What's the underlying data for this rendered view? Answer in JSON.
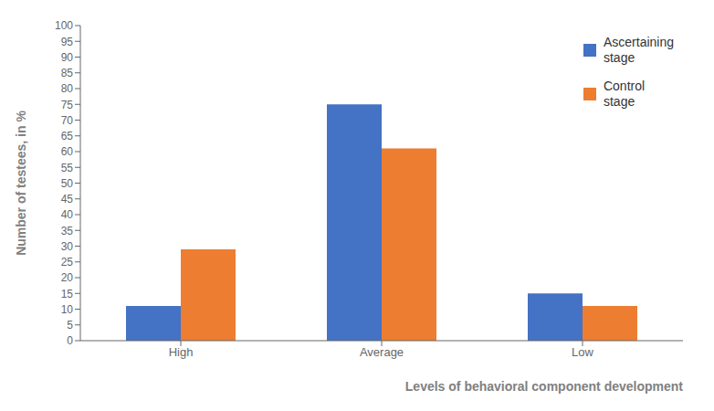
{
  "chart_data": {
    "type": "bar",
    "categories": [
      "High",
      "Average",
      "Low"
    ],
    "series": [
      {
        "name": "Ascertaining\nstage",
        "color": "#4472C4",
        "values": [
          11,
          75,
          15
        ]
      },
      {
        "name": "Control\nstage",
        "color": "#ED7D31",
        "values": [
          29,
          61,
          11
        ]
      }
    ],
    "xlabel": "Levels of behavioral component development",
    "ylabel": "Number of testees, in  %",
    "ylim": [
      0,
      100
    ],
    "yticks": [
      0,
      5,
      10,
      15,
      20,
      25,
      30,
      35,
      40,
      45,
      50,
      55,
      60,
      65,
      70,
      75,
      80,
      85,
      90,
      95,
      100
    ],
    "grid": false,
    "legend": "upper right"
  }
}
